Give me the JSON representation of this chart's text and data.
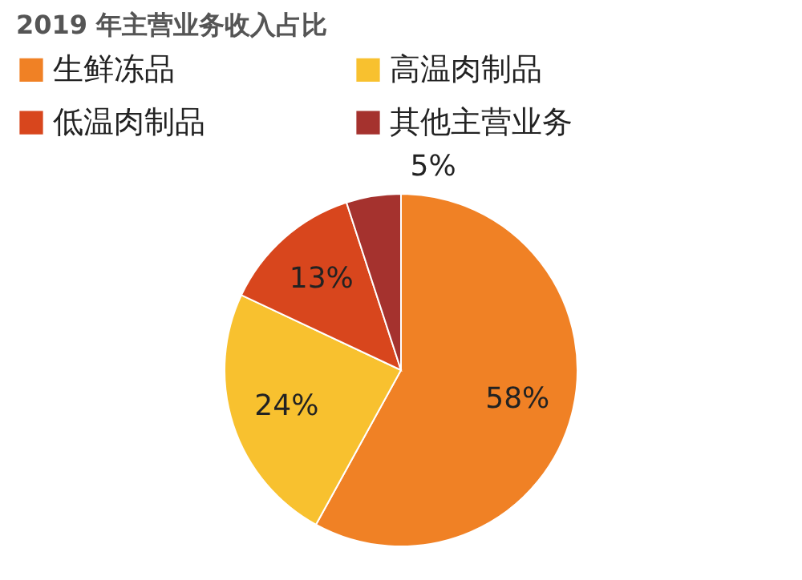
{
  "chart_data": {
    "type": "pie",
    "title": "2019 年主营业务收入占比",
    "categories": [
      "生鲜冻品",
      "高温肉制品",
      "低温肉制品",
      "其他主营业务"
    ],
    "values": [
      58,
      24,
      13,
      5
    ],
    "colors": [
      "#f08125",
      "#f8c12f",
      "#d8461d",
      "#a5322e"
    ],
    "value_labels": [
      "58%",
      "24%",
      "13%",
      "5%"
    ],
    "legend": "top"
  }
}
